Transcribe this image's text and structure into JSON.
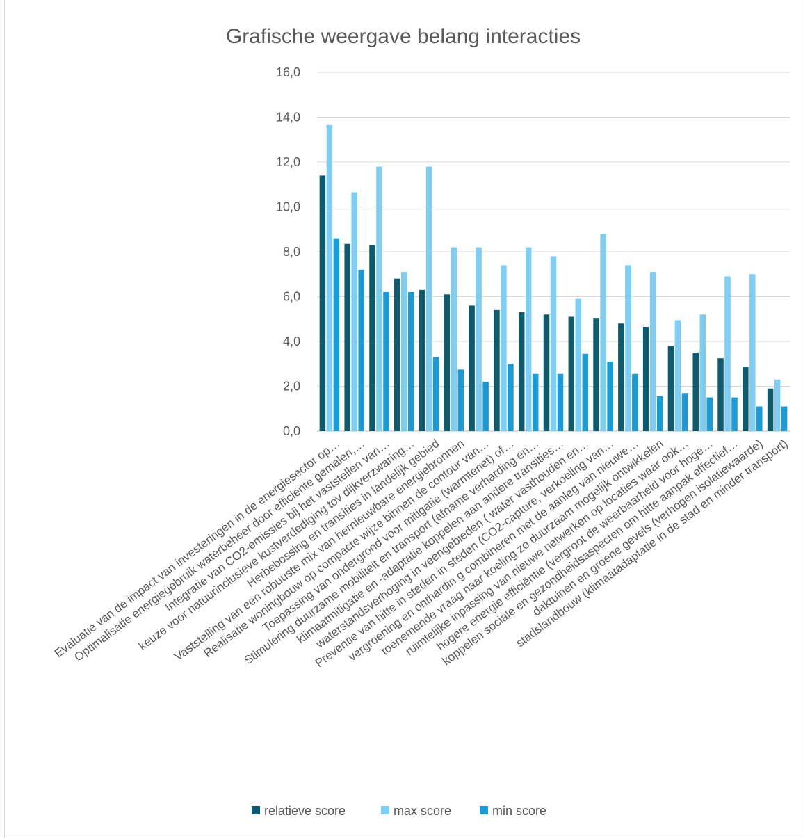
{
  "chart_data": {
    "type": "bar",
    "title": "Grafische weergave belang interacties",
    "xlabel": "",
    "ylabel": "",
    "ylim": [
      0,
      16
    ],
    "yticks": [
      "0,0",
      "2,0",
      "4,0",
      "6,0",
      "8,0",
      "10,0",
      "12,0",
      "14,0",
      "16,0"
    ],
    "grid": true,
    "legend_position": "bottom",
    "categories": [
      "Evaluatie van de impact van investeringen in de energiesector op…",
      "Optimalisatie energiegebruik waterbeheer door efficiënte gemalen,…",
      "Integratie van CO2-emissies bij het vaststellen van…",
      "keuze voor natuurinclusieve kustverdediging tov dijkverzwaring…",
      "Herbebossing en transities in landelijk gebied",
      "Vaststelling van een robuuste mix van hernieuwbare energiebronnen",
      "Realisatie woningbouw op compacte wijze binnen de contour van…",
      "Toepassing van ondergrond voor mitigatie (warmtenet) of…",
      "Stimulering duurzame mobiliteit en transport (afname verharding en…",
      "klimaatmitigatie en -adaptatie koppelen aan andere transities…",
      "waterstandsverhoging in veengebieden ( water vasthouden en…",
      "Preventie van hitte in steden in steden (CO2-capture, verkoeling van…",
      "vergroening en onthardin g combineren met de aanleg van nieuwe…",
      "toenemende vraag naar koeling zo duurzaam mogelijk ontwikkelen",
      "ruimtelijke inpassing van nieuwe netwerken op locaties waar ook…",
      "hogere energie efficiëntie (vergroot de weerbaarheid voor hoge…",
      "koppelen sociale en gezondheidsaspecten om hitte aanpak effectief…",
      "daktuinen en groene gevels (verhogen isolatiewaarde)",
      "stadslandbouw (klimaatadaptatie in de stad en minder transport)"
    ],
    "series": [
      {
        "name": "relatieve score",
        "color": "#0e5b6e",
        "values": [
          11.4,
          8.35,
          8.3,
          6.8,
          6.3,
          6.1,
          5.6,
          5.4,
          5.3,
          5.2,
          5.1,
          5.05,
          4.8,
          4.65,
          3.8,
          3.5,
          3.25,
          2.85,
          1.9
        ]
      },
      {
        "name": "max score",
        "color": "#7ecef4",
        "values": [
          13.65,
          10.65,
          11.8,
          7.1,
          11.8,
          8.2,
          8.2,
          7.4,
          8.2,
          7.8,
          5.9,
          8.8,
          7.4,
          7.1,
          4.95,
          5.2,
          6.9,
          7.0,
          2.3
        ]
      },
      {
        "name": "min score",
        "color": "#1a9ad6",
        "values": [
          8.6,
          7.2,
          6.2,
          6.2,
          3.3,
          2.75,
          2.2,
          3.0,
          2.55,
          2.55,
          3.45,
          3.1,
          2.55,
          1.55,
          1.7,
          1.5,
          1.5,
          1.1,
          1.1
        ]
      }
    ]
  }
}
